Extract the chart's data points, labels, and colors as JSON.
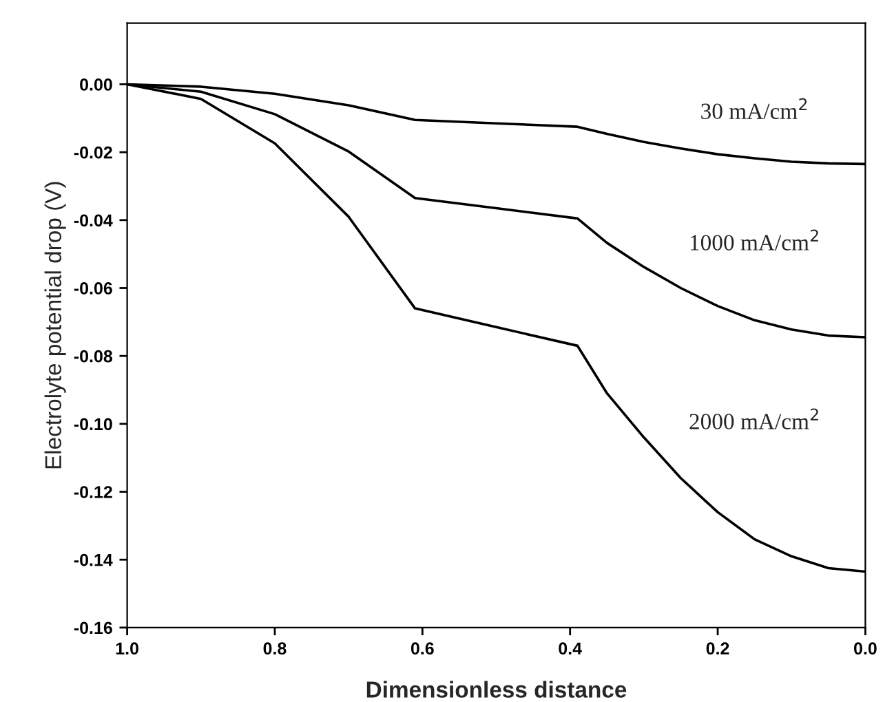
{
  "chart_data": {
    "type": "line",
    "xlabel": "Dimensionless distance",
    "ylabel": "Electrolyte potential drop (V)",
    "x": [
      1.0,
      0.9,
      0.8,
      0.7,
      0.61,
      0.5,
      0.39,
      0.35,
      0.3,
      0.25,
      0.2,
      0.15,
      0.1,
      0.05,
      0.0
    ],
    "series": [
      {
        "name": "30 mA/cm$^{2}$",
        "color": "#000000",
        "values": [
          0.0,
          -0.0007,
          -0.0028,
          -0.0062,
          -0.0105,
          -0.0115,
          -0.0125,
          -0.0146,
          -0.017,
          -0.0189,
          -0.0206,
          -0.0218,
          -0.0228,
          -0.0233,
          -0.0235
        ]
      },
      {
        "name": "1000 mA/cm$^{2}$",
        "color": "#000000",
        "values": [
          0.0,
          -0.0022,
          -0.0088,
          -0.0198,
          -0.0335,
          -0.0365,
          -0.0395,
          -0.0467,
          -0.0538,
          -0.06,
          -0.0653,
          -0.0695,
          -0.0722,
          -0.074,
          -0.0745
        ]
      },
      {
        "name": "2000 mA/cm$^{2}$",
        "color": "#000000",
        "values": [
          0.0,
          -0.0043,
          -0.0174,
          -0.039,
          -0.066,
          -0.0715,
          -0.077,
          -0.091,
          -0.104,
          -0.116,
          -0.126,
          -0.134,
          -0.139,
          -0.1425,
          -0.1435
        ]
      }
    ],
    "xlim": [
      1.0,
      0.0
    ],
    "ylim": [
      -0.16,
      0.018
    ],
    "xticks": [
      {
        "value": 1.0,
        "label": "1.0"
      },
      0.8,
      0.6,
      0.4,
      0.2,
      {
        "value": 0.0,
        "label": "0.0"
      }
    ],
    "yticks": [
      {
        "value": -0.16,
        "label": "-0.16"
      },
      {
        "value": -0.14,
        "label": "-0.14"
      },
      {
        "value": -0.12,
        "label": "-0.12"
      },
      {
        "value": -0.1,
        "label": "-0.10"
      },
      {
        "value": -0.08,
        "label": "-0.08"
      },
      {
        "value": -0.06,
        "label": "-0.06"
      },
      {
        "value": -0.04,
        "label": "-0.04"
      },
      {
        "value": -0.02,
        "label": "-0.02"
      },
      {
        "value": 0.0,
        "label": "0.00"
      }
    ],
    "grid": false,
    "legend": false,
    "marker": "none",
    "line_style": "solid"
  }
}
